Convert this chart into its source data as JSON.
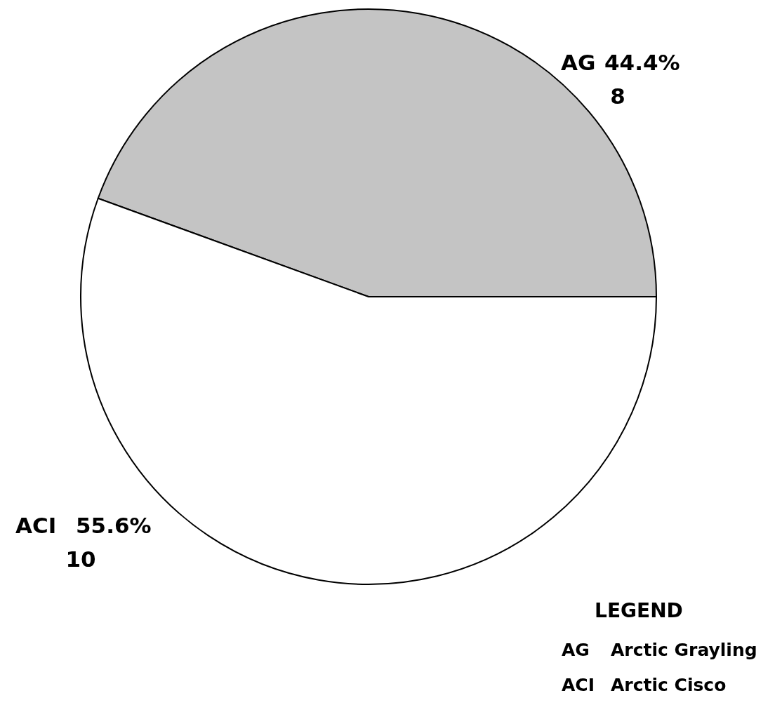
{
  "chart_data": {
    "type": "pie",
    "categories": [
      "AG",
      "ACI"
    ],
    "values": [
      8,
      10
    ],
    "value_labels": [
      "44.4%\n8",
      "55.6%\n10"
    ],
    "colors": [
      "#c4c4c4",
      "#ffffff"
    ],
    "legend_title": "LEGEND",
    "annotations": [
      "Arctic Grayling",
      "Arctic Cisco"
    ]
  }
}
